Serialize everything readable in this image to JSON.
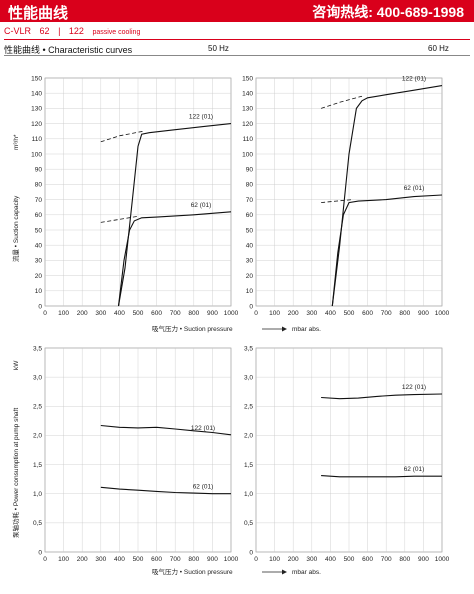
{
  "header": {
    "title_left": "性能曲线",
    "title_right": "咨询热线: 400-689-1998",
    "model": "C-VLR",
    "size_a": "62",
    "size_b": "122",
    "cooling": "passive cooling",
    "subtitle": "性能曲线 • Characteristic curves",
    "hz_left": "50 Hz",
    "hz_right": "60 Hz"
  },
  "labels": {
    "y_top": "流量 • Suction capacity",
    "y_top_unit": "m³/h*",
    "y_bottom": "泵轴功耗 • Power consumption at pump shaft",
    "y_bottom_unit": "kW",
    "x_top": "吸气压力 • Suction pressure",
    "x_top_unit": "mbar abs.",
    "x_bottom": "吸气压力 • Suction pressure",
    "x_bottom_unit": "mbar abs."
  },
  "chart_data": [
    {
      "type": "line",
      "xlim": [
        0,
        1000
      ],
      "ylim": [
        0,
        150
      ],
      "xticks": [
        "0",
        "100",
        "200",
        "300",
        "400",
        "500",
        "600",
        "700",
        "800",
        "900",
        "1000"
      ],
      "yticks": [
        "0",
        "10",
        "20",
        "30",
        "40",
        "50",
        "60",
        "70",
        "80",
        "90",
        "100",
        "110",
        "120",
        "130",
        "140",
        "150"
      ],
      "grid": true,
      "series": [
        {
          "name": "122 (01)",
          "x": [
            395,
            430,
            470,
            500,
            520,
            560,
            700,
            850,
            1000
          ],
          "y": [
            0,
            25,
            70,
            105,
            113,
            114,
            116,
            118,
            120
          ]
        },
        {
          "name": "",
          "dashed": true,
          "x": [
            300,
            400,
            530
          ],
          "y": [
            108,
            112,
            115
          ]
        },
        {
          "name": "62 (01)",
          "x": [
            395,
            425,
            455,
            480,
            520,
            600,
            800,
            1000
          ],
          "y": [
            0,
            30,
            50,
            56,
            58,
            58.5,
            60,
            62
          ]
        },
        {
          "name": "",
          "dashed": true,
          "x": [
            300,
            400,
            500
          ],
          "y": [
            55,
            57,
            59
          ]
        }
      ]
    },
    {
      "type": "line",
      "xlim": [
        0,
        1000
      ],
      "ylim": [
        0,
        150
      ],
      "xticks": [
        "0",
        "100",
        "200",
        "300",
        "400",
        "500",
        "600",
        "700",
        "800",
        "900",
        "1000"
      ],
      "yticks": [
        "0",
        "10",
        "20",
        "30",
        "40",
        "50",
        "60",
        "70",
        "80",
        "90",
        "100",
        "110",
        "120",
        "130",
        "140",
        "150"
      ],
      "grid": true,
      "series": [
        {
          "name": "122 (01)",
          "x": [
            410,
            450,
            500,
            540,
            570,
            600,
            700,
            850,
            1000
          ],
          "y": [
            0,
            40,
            100,
            130,
            135,
            137,
            139,
            142,
            145
          ]
        },
        {
          "name": "",
          "dashed": true,
          "x": [
            350,
            450,
            570
          ],
          "y": [
            130,
            134,
            138
          ]
        },
        {
          "name": "62 (01)",
          "x": [
            410,
            440,
            470,
            500,
            550,
            700,
            850,
            1000
          ],
          "y": [
            0,
            35,
            60,
            68,
            69,
            70,
            72,
            73
          ]
        },
        {
          "name": "",
          "dashed": true,
          "x": [
            350,
            430,
            520
          ],
          "y": [
            68,
            69,
            70
          ]
        }
      ]
    },
    {
      "type": "line",
      "xlim": [
        0,
        1000
      ],
      "ylim": [
        0,
        3.5
      ],
      "xticks": [
        "0",
        "100",
        "200",
        "300",
        "400",
        "500",
        "600",
        "700",
        "800",
        "900",
        "1000"
      ],
      "yticks": [
        "0",
        "0,5",
        "1,0",
        "1,5",
        "2,0",
        "2,5",
        "3,0",
        "3,5"
      ],
      "grid": true,
      "series": [
        {
          "name": "122 (01)",
          "x": [
            300,
            400,
            500,
            600,
            700,
            800,
            900,
            1000
          ],
          "y": [
            2.17,
            2.14,
            2.13,
            2.14,
            2.11,
            2.08,
            2.05,
            2.01
          ]
        },
        {
          "name": "62 (01)",
          "x": [
            300,
            400,
            500,
            600,
            700,
            800,
            900,
            1000
          ],
          "y": [
            1.11,
            1.08,
            1.06,
            1.04,
            1.02,
            1.01,
            1.0,
            1.0
          ]
        }
      ]
    },
    {
      "type": "line",
      "xlim": [
        0,
        1000
      ],
      "ylim": [
        0,
        3.5
      ],
      "xticks": [
        "0",
        "100",
        "200",
        "300",
        "400",
        "500",
        "600",
        "700",
        "800",
        "900",
        "1000"
      ],
      "yticks": [
        "0",
        "0,5",
        "1,0",
        "1,5",
        "2,0",
        "2,5",
        "3,0",
        "3,5"
      ],
      "grid": true,
      "series": [
        {
          "name": "122 (01)",
          "x": [
            350,
            450,
            550,
            650,
            750,
            850,
            1000
          ],
          "y": [
            2.65,
            2.63,
            2.64,
            2.67,
            2.69,
            2.7,
            2.71
          ]
        },
        {
          "name": "62 (01)",
          "x": [
            350,
            450,
            550,
            650,
            750,
            850,
            1000
          ],
          "y": [
            1.31,
            1.29,
            1.29,
            1.29,
            1.29,
            1.3,
            1.3
          ]
        }
      ]
    }
  ]
}
